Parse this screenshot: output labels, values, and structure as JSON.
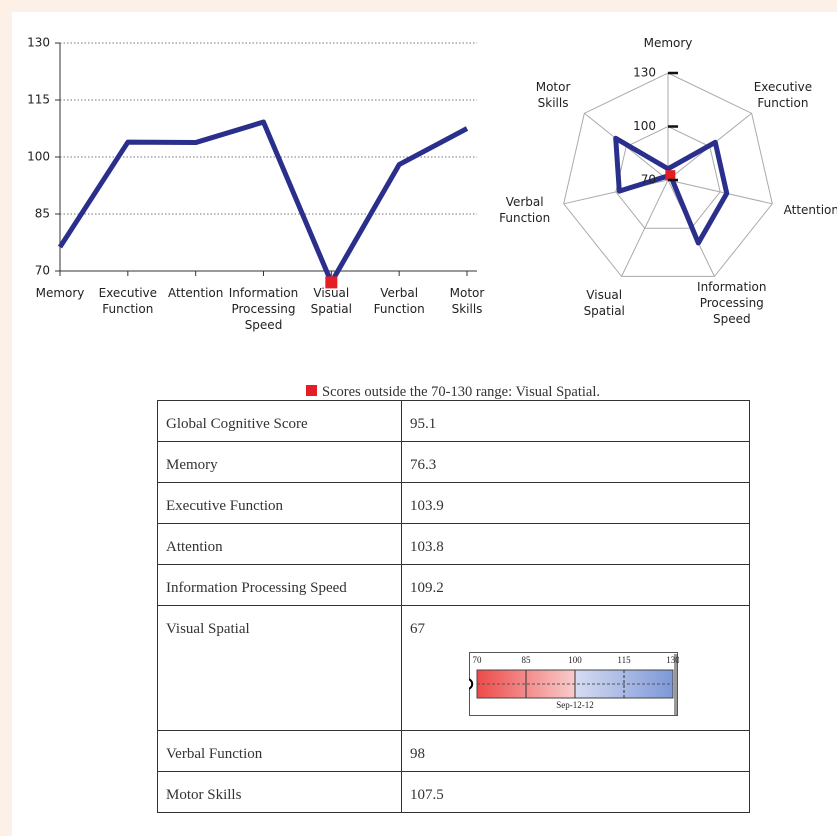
{
  "chart_data": [
    {
      "type": "line",
      "categories": [
        "Memory",
        "Executive Function",
        "Attention",
        "Information Processing Speed",
        "Visual Spatial",
        "Verbal Function",
        "Motor Skills"
      ],
      "series": [
        {
          "color": "#2b2f8c",
          "values": [
            76.3,
            103.9,
            103.8,
            109.2,
            67,
            98,
            107.5
          ]
        }
      ],
      "ylim": [
        70,
        130
      ],
      "yticks": [
        70,
        85,
        100,
        115,
        130
      ],
      "grid": true,
      "outlier_color": "#e31e24"
    },
    {
      "type": "radar",
      "categories": [
        "Memory",
        "Executive Function",
        "Attention",
        "Information Processing Speed",
        "Visual Spatial",
        "Verbal Function",
        "Motor Skills"
      ],
      "series": [
        {
          "color": "#2b2f8c",
          "values": [
            76.3,
            103.9,
            103.8,
            109.2,
            67,
            98,
            107.5
          ]
        }
      ],
      "rlim": [
        70,
        130
      ],
      "rticks": [
        70,
        100,
        130
      ],
      "grid": true,
      "outlier_color": "#e31e24"
    }
  ],
  "legend_note": "Scores outside the 70-130 range: Visual Spatial.",
  "table": {
    "rows": [
      {
        "label": "Global Cognitive Score",
        "value": 95.1
      },
      {
        "label": "Memory",
        "value": 76.3
      },
      {
        "label": "Executive Function",
        "value": 103.9
      },
      {
        "label": "Attention",
        "value": 103.8
      },
      {
        "label": "Information Processing Speed",
        "value": 109.2
      },
      {
        "label": "Visual Spatial",
        "value": 67,
        "gauge": {
          "xlim": [
            70,
            130
          ],
          "xticks": [
            70,
            85,
            100,
            115,
            130
          ],
          "split": 100,
          "date": "Sep-12-12",
          "marker_label": "0"
        }
      },
      {
        "label": "Verbal Function",
        "value": 98
      },
      {
        "label": "Motor Skills",
        "value": 107.5
      }
    ]
  }
}
